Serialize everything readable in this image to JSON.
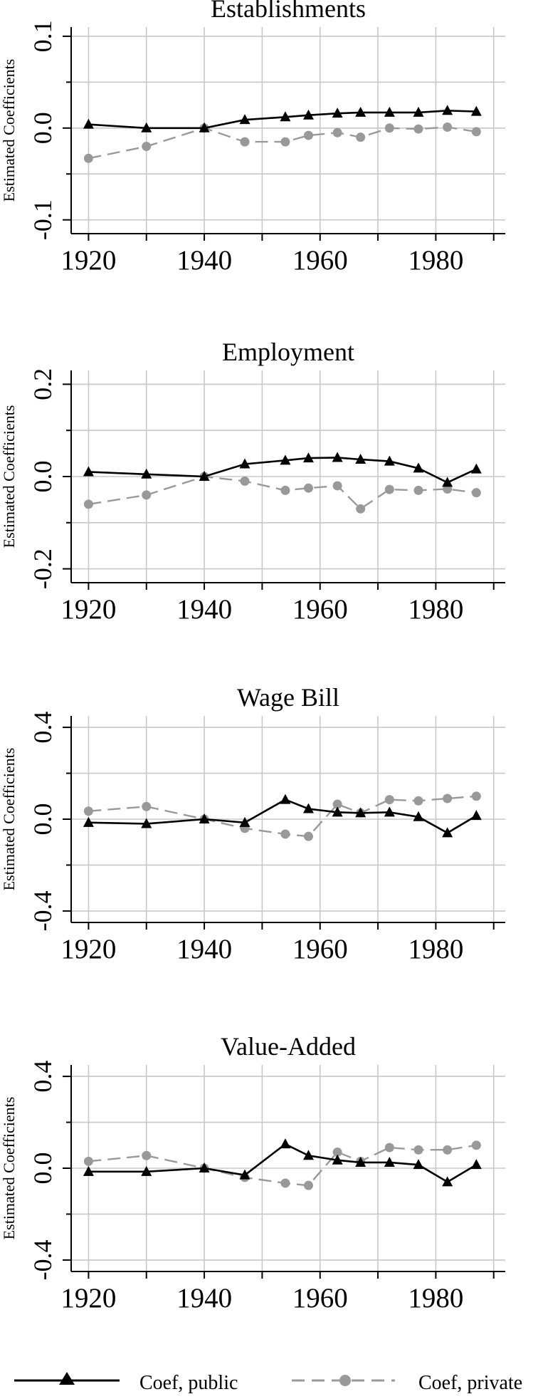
{
  "chart_data": [
    {
      "type": "line",
      "title": "Establishments",
      "ylabel": "Estimated Coefficients",
      "xlabel": "",
      "xlim": [
        1917,
        1992
      ],
      "ylim": [
        -0.115,
        0.11
      ],
      "xticks": [
        1920,
        1940,
        1960,
        1980
      ],
      "xtick_labels": [
        "1920",
        "1940",
        "1960",
        "1980"
      ],
      "xgrid": [
        1920,
        1930,
        1940,
        1950,
        1960,
        1970,
        1980,
        1990
      ],
      "yticks": [
        -0.1,
        0.0,
        0.1
      ],
      "ytick_labels": [
        "-0.1",
        "0.0",
        "0.1"
      ],
      "ygrid": [
        -0.1,
        -0.05,
        0.0,
        0.05,
        0.1
      ],
      "grid": true,
      "x": [
        1920,
        1930,
        1940,
        1947,
        1954,
        1958,
        1963,
        1967,
        1972,
        1977,
        1982,
        1987
      ],
      "series": [
        {
          "name": "Coef, public",
          "values": [
            0.004,
            0.0,
            0.0,
            0.009,
            0.012,
            0.014,
            0.016,
            0.017,
            0.017,
            0.017,
            0.019,
            0.018
          ]
        },
        {
          "name": "Coef, private",
          "values": [
            -0.033,
            -0.02,
            0.0,
            -0.015,
            -0.015,
            -0.008,
            -0.005,
            -0.01,
            0.0,
            -0.001,
            0.001,
            -0.004
          ]
        }
      ]
    },
    {
      "type": "line",
      "title": "Employment",
      "ylabel": "Estimated Coefficients",
      "xlabel": "",
      "xlim": [
        1917,
        1992
      ],
      "ylim": [
        -0.23,
        0.23
      ],
      "xticks": [
        1920,
        1940,
        1960,
        1980
      ],
      "xtick_labels": [
        "1920",
        "1940",
        "1960",
        "1980"
      ],
      "xgrid": [
        1920,
        1930,
        1940,
        1950,
        1960,
        1970,
        1980,
        1990
      ],
      "yticks": [
        -0.2,
        0.0,
        0.2
      ],
      "ytick_labels": [
        "-0.2",
        "0.0",
        "0.2"
      ],
      "ygrid": [
        -0.2,
        -0.1,
        0.0,
        0.1,
        0.2
      ],
      "grid": true,
      "x": [
        1920,
        1930,
        1940,
        1947,
        1954,
        1958,
        1963,
        1967,
        1972,
        1977,
        1982,
        1987
      ],
      "series": [
        {
          "name": "Coef, public",
          "values": [
            0.01,
            0.005,
            0.0,
            0.027,
            0.035,
            0.04,
            0.041,
            0.037,
            0.033,
            0.018,
            -0.013,
            0.016
          ]
        },
        {
          "name": "Coef, private",
          "values": [
            -0.06,
            -0.04,
            0.0,
            -0.01,
            -0.03,
            -0.025,
            -0.02,
            -0.07,
            -0.028,
            -0.03,
            -0.027,
            -0.035
          ]
        }
      ]
    },
    {
      "type": "line",
      "title": "Wage Bill",
      "ylabel": "Estimated Coefficients",
      "xlabel": "",
      "xlim": [
        1917,
        1992
      ],
      "ylim": [
        -0.45,
        0.45
      ],
      "xticks": [
        1920,
        1940,
        1960,
        1980
      ],
      "xtick_labels": [
        "1920",
        "1940",
        "1960",
        "1980"
      ],
      "xgrid": [
        1920,
        1930,
        1940,
        1950,
        1960,
        1970,
        1980,
        1990
      ],
      "yticks": [
        -0.4,
        0.0,
        0.4
      ],
      "ytick_labels": [
        "-0.4",
        "0.0",
        "0.4"
      ],
      "ygrid": [
        -0.4,
        -0.2,
        0.0,
        0.2,
        0.4
      ],
      "grid": true,
      "x": [
        1920,
        1930,
        1940,
        1947,
        1954,
        1958,
        1963,
        1967,
        1972,
        1977,
        1982,
        1987
      ],
      "series": [
        {
          "name": "Coef, public",
          "values": [
            -0.015,
            -0.02,
            0.0,
            -0.015,
            0.085,
            0.045,
            0.03,
            0.027,
            0.03,
            0.01,
            -0.06,
            0.015
          ]
        },
        {
          "name": "Coef, private",
          "values": [
            0.035,
            0.055,
            0.0,
            -0.04,
            -0.065,
            -0.075,
            0.065,
            0.027,
            0.085,
            0.08,
            0.09,
            0.1
          ]
        }
      ]
    },
    {
      "type": "line",
      "title": "Value-Added",
      "ylabel": "Estimated Coefficients",
      "xlabel": "",
      "xlim": [
        1917,
        1992
      ],
      "ylim": [
        -0.45,
        0.45
      ],
      "xticks": [
        1920,
        1940,
        1960,
        1980
      ],
      "xtick_labels": [
        "1920",
        "1940",
        "1960",
        "1980"
      ],
      "xgrid": [
        1920,
        1930,
        1940,
        1950,
        1960,
        1970,
        1980,
        1990
      ],
      "yticks": [
        -0.4,
        0.0,
        0.4
      ],
      "ytick_labels": [
        "-0.4",
        "0.0",
        "0.4"
      ],
      "ygrid": [
        -0.4,
        -0.2,
        0.0,
        0.2,
        0.4
      ],
      "grid": true,
      "x": [
        1920,
        1930,
        1940,
        1947,
        1954,
        1958,
        1963,
        1967,
        1972,
        1977,
        1982,
        1987
      ],
      "series": [
        {
          "name": "Coef, public",
          "values": [
            -0.015,
            -0.015,
            0.0,
            -0.03,
            0.105,
            0.055,
            0.035,
            0.025,
            0.025,
            0.015,
            -0.06,
            0.015
          ]
        },
        {
          "name": "Coef, private",
          "values": [
            0.03,
            0.055,
            0.0,
            -0.04,
            -0.065,
            -0.075,
            0.07,
            0.03,
            0.09,
            0.08,
            0.08,
            0.1
          ]
        }
      ]
    }
  ],
  "legend": {
    "placement": "bottom",
    "items": [
      {
        "label": "Coef, public",
        "color": "#000000",
        "marker": "triangle",
        "line": "solid"
      },
      {
        "label": "Coef, private",
        "color": "#999999",
        "marker": "circle",
        "line": "dashed"
      }
    ]
  },
  "colors": {
    "public": "#000000",
    "private": "#999999",
    "grid": "#c8c8c8",
    "axis": "#000000"
  }
}
